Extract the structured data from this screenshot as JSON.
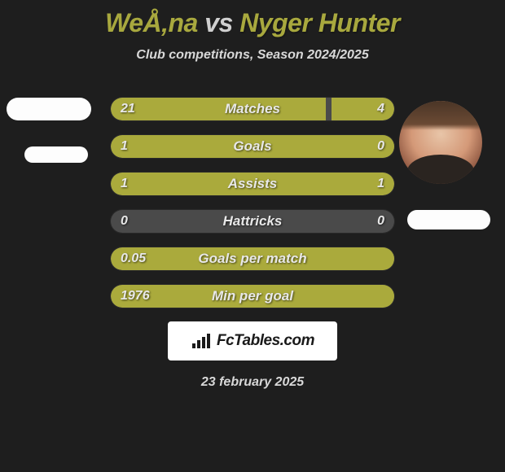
{
  "title": {
    "player1": "WeÅ‚na",
    "vs": "vs",
    "player2": "Nyger Hunter"
  },
  "subtitle": "Club competitions, Season 2024/2025",
  "bars": {
    "bg_color": "#4a4a4a",
    "fill_color": "#aaaa3c",
    "rows": [
      {
        "label": "Matches",
        "left": "21",
        "right": "4",
        "left_pct": 76,
        "right_pct": 22
      },
      {
        "label": "Goals",
        "left": "1",
        "right": "0",
        "left_pct": 100,
        "right_pct": 0
      },
      {
        "label": "Assists",
        "left": "1",
        "right": "1",
        "left_pct": 50,
        "right_pct": 50
      },
      {
        "label": "Hattricks",
        "left": "0",
        "right": "0",
        "left_pct": 0,
        "right_pct": 0
      },
      {
        "label": "Goals per match",
        "left": "0.05",
        "right": "",
        "left_pct": 100,
        "right_pct": 0
      },
      {
        "label": "Min per goal",
        "left": "1976",
        "right": "",
        "left_pct": 100,
        "right_pct": 0
      }
    ]
  },
  "logo": {
    "text": "FcTables.com"
  },
  "date": "23 february 2025",
  "colors": {
    "background": "#1e1e1e",
    "accent": "#a8a83e",
    "text_light": "#d8d8d8",
    "bar_bg": "#4a4a4a"
  }
}
